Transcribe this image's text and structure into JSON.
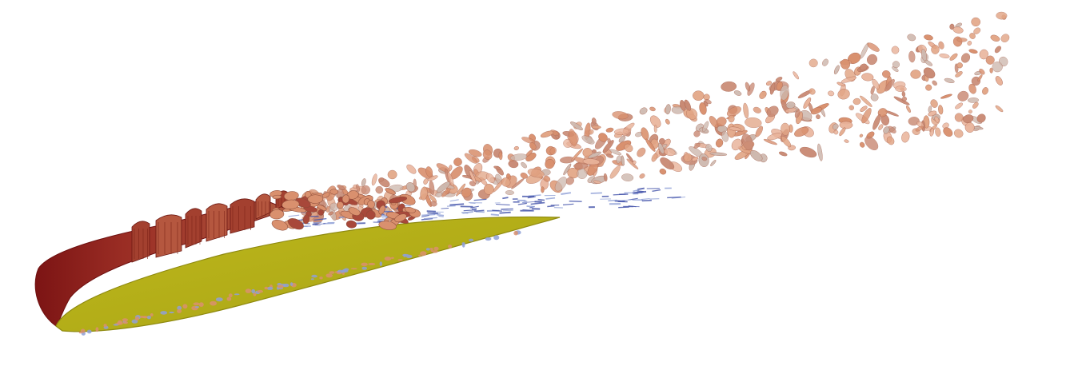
{
  "scene": {
    "background": "#ffffff",
    "colors": {
      "airfoil_surface": "#b5b017",
      "airfoil_edge": "#8f8a10",
      "leading_edge_dark": "#8a1c1c",
      "leading_edge_mid": "#a8483a",
      "vortex_warm": "#d9906e",
      "vortex_light": "#e9b39a",
      "vortex_pale": "#cdb7ad",
      "shear_blue": "#3f4fa8",
      "shear_light_blue": "#8fa0d6"
    },
    "objects": [
      "airfoil-surface",
      "leading-edge-vortex-sheet",
      "separated-vortical-structures",
      "turbulent-wake"
    ]
  }
}
